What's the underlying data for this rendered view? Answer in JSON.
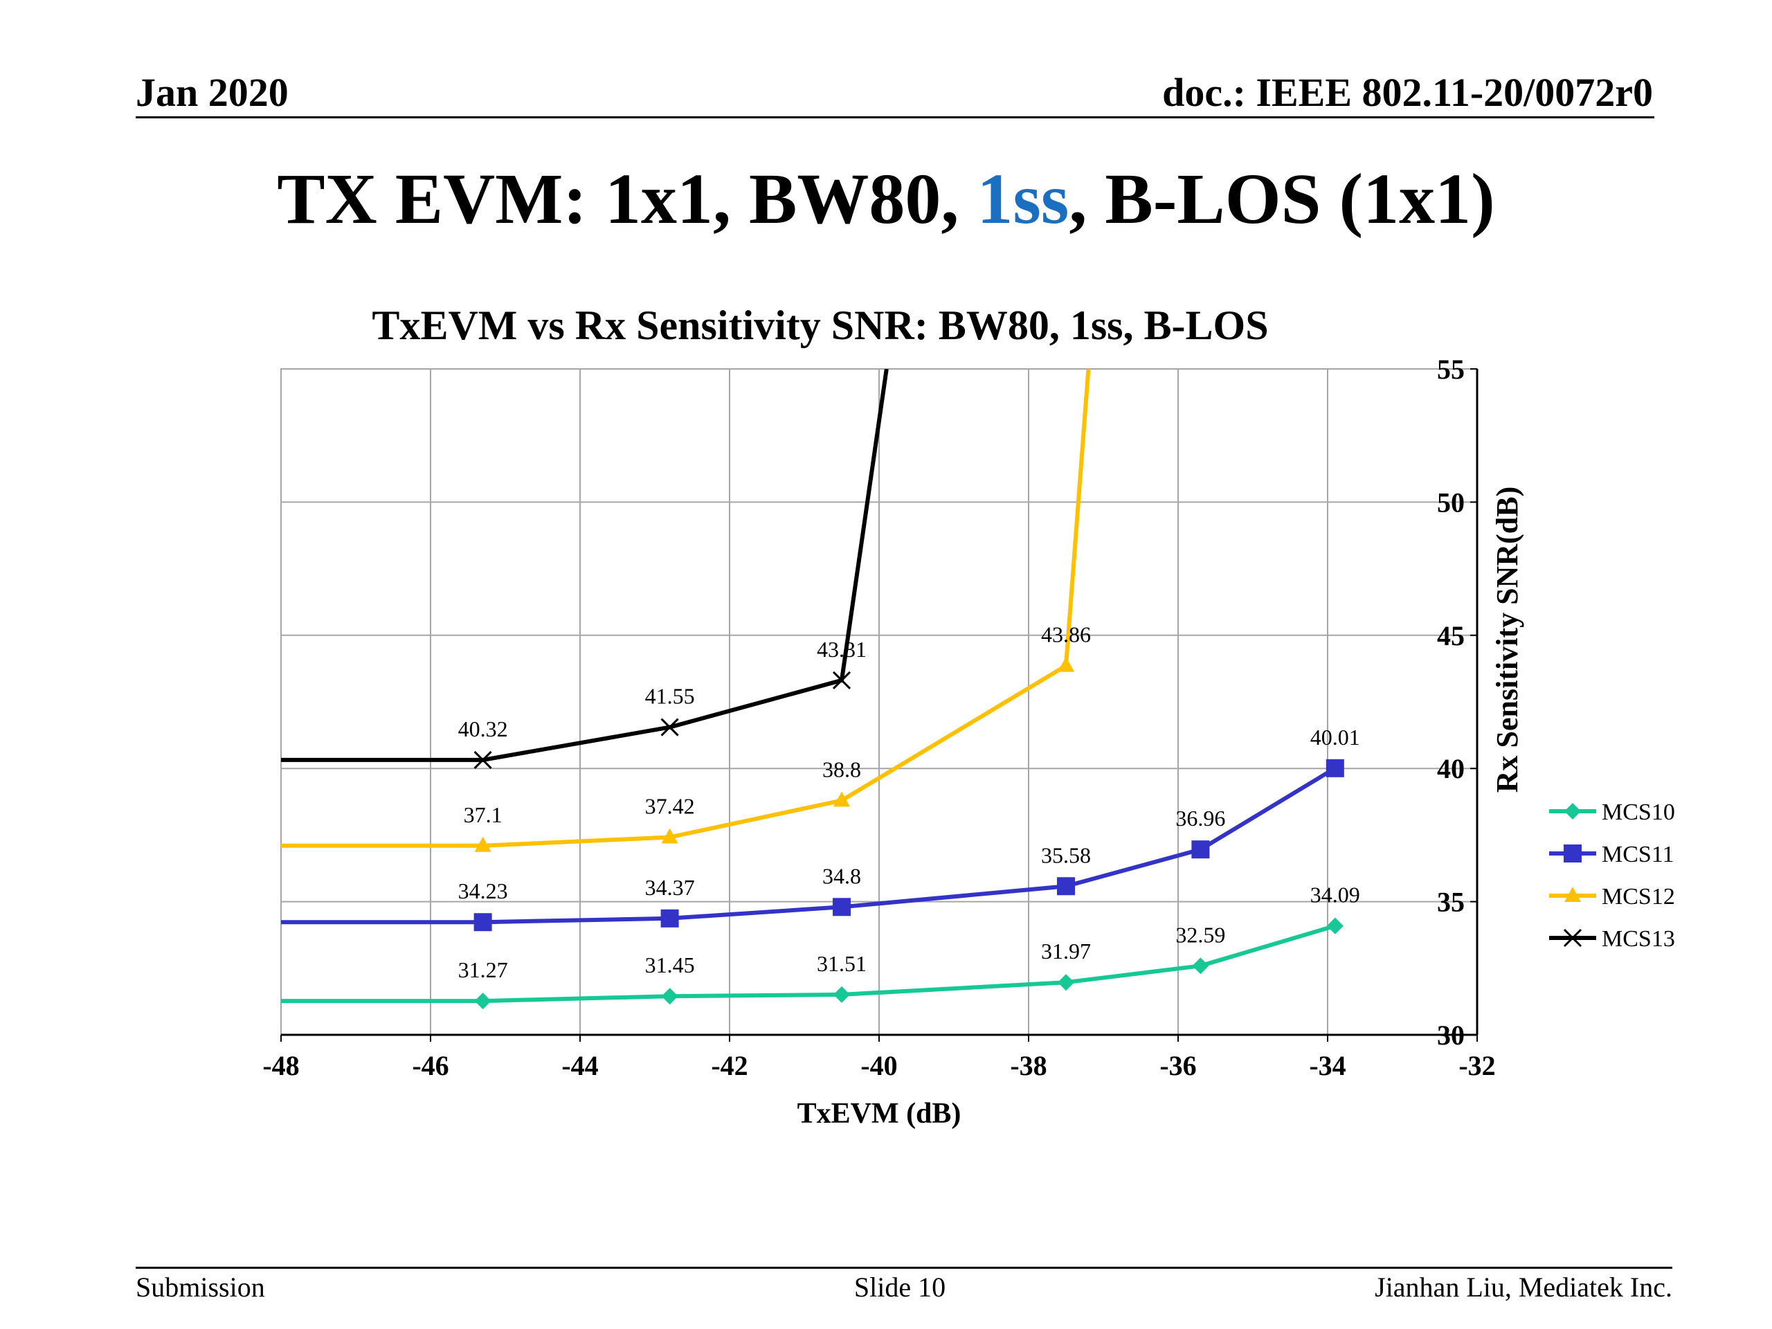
{
  "header": {
    "date": "Jan 2020",
    "doc": "doc.: IEEE 802.11-20/0072r0"
  },
  "slide_title": {
    "before": "TX EVM: 1x1, BW80, ",
    "accent": "1ss",
    "after": ", B-LOS (1x1)"
  },
  "footer": {
    "left": "Submission",
    "center": "Slide 10",
    "right": "Jianhan Liu, Mediatek Inc."
  },
  "colors": {
    "accent": "#1a6fc0",
    "grid": "#a6a6a6"
  },
  "chart_data": {
    "type": "line",
    "title": "TxEVM vs Rx Sensitivity SNR:  BW80, 1ss, B-LOS",
    "xlabel": "TxEVM (dB)",
    "ylabel": "Rx Sensitivity SNR(dB)",
    "xlim": [
      -48,
      -32
    ],
    "ylim": [
      30,
      55
    ],
    "x_ticks": [
      "-48",
      "-46",
      "-44",
      "-42",
      "-40",
      "-38",
      "-36",
      "-34",
      "-32"
    ],
    "y_ticks": [
      "30",
      "35",
      "40",
      "45",
      "50",
      "55"
    ],
    "grid": true,
    "y_axis_position": "right",
    "legend_position": "right",
    "series": [
      {
        "name": "MCS10",
        "color": "#16c896",
        "marker": "diamond",
        "points": [
          [
            -48,
            31.27
          ],
          [
            -45.3,
            31.27
          ],
          [
            -42.8,
            31.45
          ],
          [
            -40.5,
            31.51
          ],
          [
            -37.5,
            31.97
          ],
          [
            -35.7,
            32.59
          ],
          [
            -33.9,
            34.09
          ]
        ],
        "labels": [
          "",
          "31.27",
          "31.45",
          "31.51",
          "31.97",
          "32.59",
          "34.09"
        ]
      },
      {
        "name": "MCS11",
        "color": "#3333c8",
        "marker": "square",
        "points": [
          [
            -48,
            34.23
          ],
          [
            -45.3,
            34.23
          ],
          [
            -42.8,
            34.37
          ],
          [
            -40.5,
            34.8
          ],
          [
            -37.5,
            35.58
          ],
          [
            -35.7,
            36.96
          ],
          [
            -33.9,
            40.01
          ]
        ],
        "labels": [
          "",
          "34.23",
          "34.37",
          "34.8",
          "35.58",
          "36.96",
          "40.01"
        ]
      },
      {
        "name": "MCS12",
        "color": "#ffc000",
        "marker": "triangle",
        "points": [
          [
            -48,
            37.1
          ],
          [
            -45.3,
            37.1
          ],
          [
            -42.8,
            37.42
          ],
          [
            -40.5,
            38.8
          ],
          [
            -37.5,
            43.86
          ],
          [
            -37.2,
            55
          ]
        ],
        "labels": [
          "",
          "37.1",
          "37.42",
          "38.8",
          "43.86",
          ""
        ]
      },
      {
        "name": "MCS13",
        "color": "#000000",
        "marker": "x",
        "points": [
          [
            -48,
            40.32
          ],
          [
            -45.3,
            40.32
          ],
          [
            -42.8,
            41.55
          ],
          [
            -40.5,
            43.31
          ],
          [
            -39.9,
            55
          ]
        ],
        "labels": [
          "",
          "40.32",
          "41.55",
          "43.31",
          ""
        ]
      }
    ]
  }
}
